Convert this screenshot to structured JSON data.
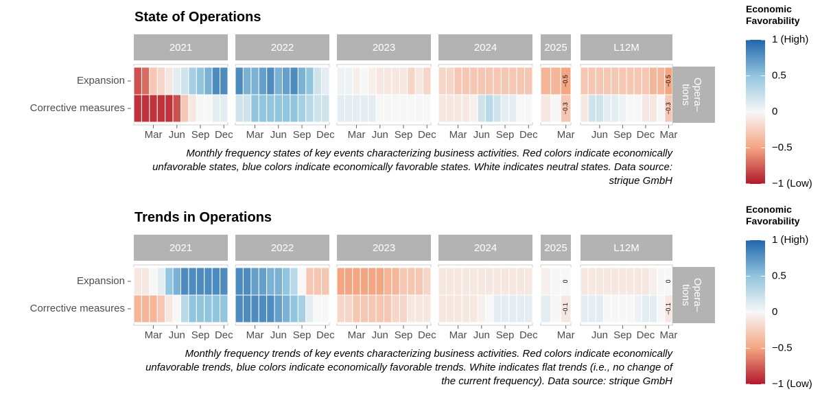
{
  "chart_data": [
    {
      "type": "heatmap",
      "title": "State of Operations",
      "caption": "Monthly frequency states of key events characterizing business activities. Red colors indicate economically unfavorable states, blue colors indicate economically favorable states. White indicates neutral states. Data source: strique GmbH",
      "rows": [
        "Expansion",
        "Corrective measures"
      ],
      "row_facet": [
        "Opera–",
        "tions"
      ],
      "facets": [
        {
          "label": "2021",
          "values": [
            [
              -0.8,
              -0.7,
              -0.3,
              -0.2,
              -0.1,
              0.1,
              0.2,
              0.4,
              0.5,
              0.6,
              0.8,
              0.8
            ],
            [
              -0.9,
              -0.9,
              -0.9,
              -0.9,
              -0.9,
              -0.8,
              -0.3,
              -0.1,
              0,
              0,
              0.1,
              0.1
            ]
          ],
          "xticks": [
            {
              "value": 3,
              "label": "Mar"
            },
            {
              "value": 6,
              "label": "Jun"
            },
            {
              "value": 9,
              "label": "Sep"
            },
            {
              "value": 12,
              "label": "Dec"
            }
          ]
        },
        {
          "label": "2022",
          "values": [
            [
              0.8,
              0.6,
              0.6,
              0.7,
              0.8,
              0.6,
              0.7,
              0.8,
              0.6,
              0.5,
              0.2,
              0.1
            ],
            [
              0.2,
              0.2,
              0.5,
              0.5,
              0.5,
              0.5,
              0.5,
              0.5,
              0.4,
              0.3,
              0.2,
              0.2
            ]
          ],
          "xticks": [
            {
              "value": 3,
              "label": "Mar"
            },
            {
              "value": 6,
              "label": "Jun"
            },
            {
              "value": 9,
              "label": "Sep"
            },
            {
              "value": 12,
              "label": "Dec"
            }
          ]
        },
        {
          "label": "2023",
          "values": [
            [
              0.05,
              0.05,
              -0.05,
              0,
              -0.05,
              -0.1,
              -0.1,
              -0.1,
              -0.1,
              -0.2,
              -0.1,
              -0.2
            ],
            [
              0.1,
              0.1,
              0.1,
              0.1,
              0.1,
              0,
              0,
              0,
              0,
              0,
              0,
              0
            ]
          ],
          "xticks": [
            {
              "value": 3,
              "label": "Mar"
            },
            {
              "value": 6,
              "label": "Jun"
            },
            {
              "value": 9,
              "label": "Sep"
            },
            {
              "value": 12,
              "label": "Dec"
            }
          ]
        },
        {
          "label": "2024",
          "values": [
            [
              -0.2,
              -0.2,
              -0.3,
              -0.3,
              -0.3,
              -0.3,
              -0.3,
              -0.3,
              -0.3,
              -0.3,
              -0.3,
              -0.3
            ],
            [
              -0.1,
              -0.1,
              -0.1,
              -0.1,
              -0.05,
              0.2,
              0.3,
              0.2,
              0.1,
              0.1,
              0,
              0
            ]
          ],
          "xticks": [
            {
              "value": 3,
              "label": "Mar"
            },
            {
              "value": 6,
              "label": "Jun"
            },
            {
              "value": 9,
              "label": "Sep"
            },
            {
              "value": 12,
              "label": "Dec"
            }
          ]
        },
        {
          "label": "2025",
          "values": [
            [
              -0.4,
              -0.4,
              -0.5
            ],
            [
              -0.1,
              0,
              -0.3
            ]
          ],
          "value_labels": [
            [
              null,
              null,
              "−0.5"
            ],
            [
              null,
              null,
              "−0.3"
            ]
          ],
          "xticks": [
            {
              "value": 3,
              "label": "Mar"
            }
          ]
        },
        {
          "label": "L12M",
          "values": [
            [
              -0.3,
              -0.3,
              -0.3,
              -0.3,
              -0.3,
              -0.3,
              -0.3,
              -0.3,
              -0.3,
              -0.4,
              -0.4,
              -0.5
            ],
            [
              -0.1,
              0.2,
              0.2,
              0.1,
              0.1,
              0.05,
              0,
              0,
              -0.1,
              -0.1,
              0,
              -0.3
            ]
          ],
          "value_labels": [
            [
              null,
              null,
              null,
              null,
              null,
              null,
              null,
              null,
              null,
              null,
              null,
              "−0.5"
            ],
            [
              null,
              null,
              null,
              null,
              null,
              null,
              null,
              null,
              null,
              null,
              null,
              "−0.3"
            ]
          ],
          "xticks": [
            {
              "value": 3,
              "label": "Jun"
            },
            {
              "value": 6,
              "label": "Sep"
            },
            {
              "value": 9,
              "label": "Dec"
            },
            {
              "value": 12,
              "label": "Mar"
            }
          ]
        }
      ],
      "zlim": [
        -1,
        1
      ],
      "colorscale": [
        {
          "value": -1,
          "color": "#b2182b"
        },
        {
          "value": -0.5,
          "color": "#f4a582"
        },
        {
          "value": 0,
          "color": "#f7f7f7"
        },
        {
          "value": 0.5,
          "color": "#92c5de"
        },
        {
          "value": 1,
          "color": "#2166ac"
        }
      ],
      "legend": {
        "title": "Economic Favorability",
        "ticks": [
          {
            "value": 1,
            "label": "1 (High)"
          },
          0.5,
          0,
          {
            "value": -0.5,
            "label": "−0.5"
          },
          {
            "value": -1,
            "label": "−1 (Low)"
          }
        ]
      }
    },
    {
      "type": "heatmap",
      "title": "Trends in Operations",
      "caption": "Monthly frequency trends of key events characterizing business activities. Red colors indicate economically unfavorable trends, blue colors indicate economically favorable trends. White indicates flat trends (i.e., no change of the current frequency). Data source: strique GmbH",
      "rows": [
        "Expansion",
        "Corrective measures"
      ],
      "row_facet": [
        "Opera–",
        "tions"
      ],
      "facets": [
        {
          "label": "2021",
          "values": [
            [
              -0.1,
              -0.1,
              0,
              0.1,
              0.5,
              0.6,
              0.8,
              0.8,
              0.8,
              0.8,
              0.8,
              0.8
            ],
            [
              -0.4,
              -0.4,
              -0.4,
              -0.3,
              -0.1,
              0,
              0.3,
              0.5,
              0.5,
              0.5,
              0.5,
              0.5
            ]
          ],
          "xticks": [
            {
              "value": 3,
              "label": "Mar"
            },
            {
              "value": 6,
              "label": "Jun"
            },
            {
              "value": 9,
              "label": "Sep"
            },
            {
              "value": 12,
              "label": "Dec"
            }
          ]
        },
        {
          "label": "2022",
          "values": [
            [
              0.8,
              0.8,
              0.7,
              0.7,
              0.6,
              0.6,
              0.5,
              0.3,
              0,
              -0.3,
              -0.3,
              -0.3
            ],
            [
              0.8,
              0.8,
              0.8,
              0.8,
              0.8,
              0.7,
              0.6,
              0.5,
              0.4,
              0.1,
              0,
              0
            ]
          ],
          "xticks": [
            {
              "value": 3,
              "label": "Mar"
            },
            {
              "value": 6,
              "label": "Jun"
            },
            {
              "value": 9,
              "label": "Sep"
            },
            {
              "value": 12,
              "label": "Dec"
            }
          ]
        },
        {
          "label": "2023",
          "values": [
            [
              -0.5,
              -0.5,
              -0.5,
              -0.5,
              -0.5,
              -0.5,
              -0.4,
              -0.4,
              -0.3,
              -0.3,
              -0.3,
              -0.2
            ],
            [
              -0.2,
              -0.2,
              -0.3,
              -0.3,
              -0.3,
              -0.3,
              -0.3,
              -0.2,
              -0.2,
              -0.1,
              -0.1,
              -0.1
            ]
          ],
          "xticks": [
            {
              "value": 3,
              "label": "Mar"
            },
            {
              "value": 6,
              "label": "Jun"
            },
            {
              "value": 9,
              "label": "Sep"
            },
            {
              "value": 12,
              "label": "Dec"
            }
          ]
        },
        {
          "label": "2024",
          "values": [
            [
              -0.1,
              -0.1,
              -0.1,
              -0.1,
              -0.1,
              -0.1,
              -0.1,
              -0.1,
              -0.1,
              -0.1,
              -0.1,
              -0.1
            ],
            [
              -0.1,
              -0.1,
              -0.1,
              -0.1,
              -0.1,
              -0.05,
              0,
              0.1,
              0.1,
              0.1,
              0.1,
              0.1
            ]
          ],
          "xticks": [
            {
              "value": 3,
              "label": "Mar"
            },
            {
              "value": 6,
              "label": "Jun"
            },
            {
              "value": 9,
              "label": "Sep"
            },
            {
              "value": 12,
              "label": "Dec"
            }
          ]
        },
        {
          "label": "2025",
          "values": [
            [
              -0.05,
              0,
              0
            ],
            [
              0.1,
              0,
              -0.1
            ]
          ],
          "value_labels": [
            [
              null,
              null,
              "0"
            ],
            [
              null,
              null,
              "−0.1"
            ]
          ],
          "xticks": [
            {
              "value": 3,
              "label": "Mar"
            }
          ]
        },
        {
          "label": "L12M",
          "values": [
            [
              -0.1,
              -0.1,
              -0.1,
              -0.1,
              -0.1,
              -0.1,
              -0.1,
              -0.1,
              -0.1,
              -0.05,
              0,
              0
            ],
            [
              0.1,
              0.1,
              0.1,
              0,
              0,
              0,
              0,
              0.05,
              0.1,
              0.1,
              0,
              -0.1
            ]
          ],
          "value_labels": [
            [
              null,
              null,
              null,
              null,
              null,
              null,
              null,
              null,
              null,
              null,
              null,
              "0"
            ],
            [
              null,
              null,
              null,
              null,
              null,
              null,
              null,
              null,
              null,
              null,
              null,
              "−0.1"
            ]
          ],
          "xticks": [
            {
              "value": 3,
              "label": "Jun"
            },
            {
              "value": 6,
              "label": "Sep"
            },
            {
              "value": 9,
              "label": "Dec"
            },
            {
              "value": 12,
              "label": "Mar"
            }
          ]
        }
      ],
      "zlim": [
        -1,
        1
      ],
      "colorscale": [
        {
          "value": -1,
          "color": "#b2182b"
        },
        {
          "value": -0.5,
          "color": "#f4a582"
        },
        {
          "value": 0,
          "color": "#f7f7f7"
        },
        {
          "value": 0.5,
          "color": "#92c5de"
        },
        {
          "value": 1,
          "color": "#2166ac"
        }
      ],
      "legend": {
        "title": "Economic Favorability",
        "ticks": [
          {
            "value": 1,
            "label": "1 (High)"
          },
          0.5,
          0,
          {
            "value": -0.5,
            "label": "−0.5"
          },
          {
            "value": -1,
            "label": "−1 (Low)"
          }
        ]
      }
    }
  ]
}
